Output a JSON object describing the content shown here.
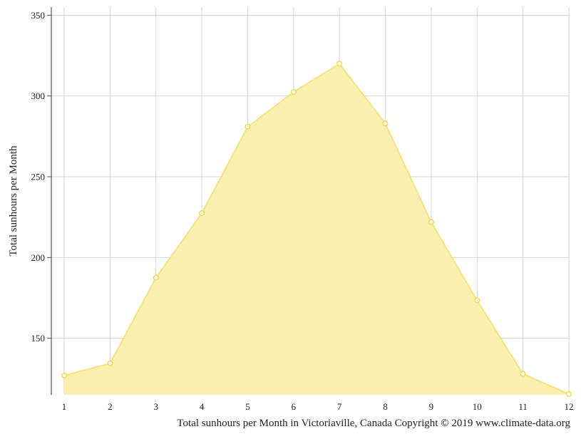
{
  "chart_data": {
    "type": "area",
    "title": "",
    "ylabel": "Total sunhours per Month",
    "xlabel": "",
    "caption": "Total sunhours per Month in Victoriaville, Canada Copyright © 2019 www.climate-data.org",
    "x": [
      1,
      2,
      3,
      4,
      5,
      6,
      7,
      8,
      9,
      10,
      11,
      12
    ],
    "y_ticks": [
      150,
      200,
      250,
      300,
      350
    ],
    "ylim": [
      115,
      355
    ],
    "series": [
      {
        "values": [
          127,
          134.5,
          187.5,
          227.5,
          281,
          302.5,
          320,
          283,
          222,
          173.5,
          128,
          115.5
        ],
        "color": "#f2d64f",
        "fill": "#f9eeaa"
      }
    ],
    "grid": true,
    "legend": "none"
  }
}
